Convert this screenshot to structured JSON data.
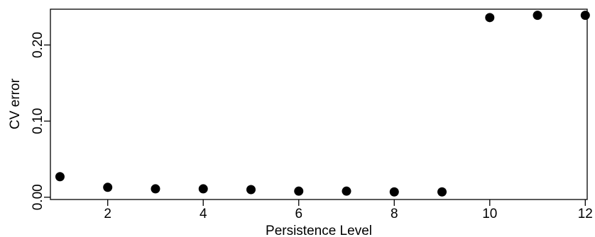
{
  "chart_data": {
    "type": "scatter",
    "title": "",
    "xlabel": "Persistence Level",
    "ylabel": "CV error",
    "x": [
      1,
      2,
      3,
      4,
      5,
      6,
      7,
      8,
      9,
      10,
      11,
      12
    ],
    "y": [
      0.027,
      0.013,
      0.011,
      0.011,
      0.01,
      0.008,
      0.008,
      0.007,
      0.007,
      0.236,
      0.239,
      0.239
    ],
    "x_ticks": [
      2,
      4,
      6,
      8,
      10,
      12
    ],
    "x_tick_labels": [
      "2",
      "4",
      "6",
      "8",
      "10",
      "12"
    ],
    "y_ticks": [
      0.0,
      0.1,
      0.2
    ],
    "y_tick_labels": [
      "0.00",
      "0.10",
      "0.20"
    ],
    "xlim": [
      0.8,
      12.04
    ],
    "ylim": [
      -0.003,
      0.247
    ],
    "grid": false,
    "legend": "none",
    "marker_color": "#000000",
    "axis_color": "#000000"
  }
}
